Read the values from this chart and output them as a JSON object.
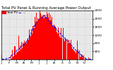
{
  "title": "Total PV Panel & Running Average Power Output",
  "subtitle": "Total PV  ---",
  "bg_color": "#ffffff",
  "plot_bg": "#e8e8e8",
  "bar_color": "#ff0000",
  "avg_color": "#0000ff",
  "grid_color": "#bbbbbb",
  "border_color": "#000000",
  "ylim": [
    0,
    2400
  ],
  "yticks": [
    400,
    800,
    1200,
    1600,
    2000,
    2400
  ],
  "ytick_labels": [
    "400",
    "800",
    "1200",
    "1600",
    "2000",
    "2400"
  ],
  "n_points": 365,
  "avg_value": 420,
  "title_fontsize": 3.8,
  "legend_fontsize": 3.0,
  "tick_fontsize": 3.2,
  "month_starts": [
    0,
    31,
    59,
    90,
    120,
    151,
    181,
    212,
    243,
    273,
    304,
    334
  ],
  "month_labels": [
    "J",
    "F",
    "M",
    "A",
    "M",
    "J",
    "J",
    "A",
    "S",
    "O",
    "N",
    "D"
  ]
}
